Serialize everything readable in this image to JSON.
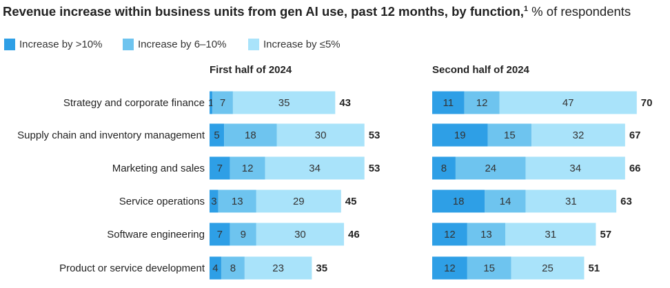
{
  "title": {
    "bold": "Revenue increase within business units from gen AI use, past 12 months, by function,",
    "footnote": "1",
    "normal": " % of respondents"
  },
  "legend": [
    {
      "label": "Increase by >10%",
      "color": "#2e9fe6"
    },
    {
      "label": "Increase by 6–10%",
      "color": "#6ec4ef"
    },
    {
      "label": "Increase by ≤5%",
      "color": "#a9e3fa"
    }
  ],
  "chart_data": {
    "type": "bar",
    "orientation": "horizontal",
    "stacked": true,
    "categories": [
      "Strategy and corporate finance",
      "Supply chain and inventory management",
      "Marketing and sales",
      "Service operations",
      "Software engineering",
      "Product or service development"
    ],
    "panels": [
      {
        "title": "First half of 2024",
        "series": [
          {
            "name": "Increase by >10%",
            "values": [
              1,
              5,
              7,
              3,
              7,
              4
            ]
          },
          {
            "name": "Increase by 6–10%",
            "values": [
              7,
              18,
              12,
              13,
              9,
              8
            ]
          },
          {
            "name": "Increase by ≤5%",
            "values": [
              35,
              30,
              34,
              29,
              30,
              23
            ]
          }
        ],
        "totals": [
          43,
          53,
          53,
          45,
          46,
          35
        ]
      },
      {
        "title": "Second half of 2024",
        "series": [
          {
            "name": "Increase by >10%",
            "values": [
              11,
              19,
              8,
              18,
              12,
              12
            ]
          },
          {
            "name": "Increase by 6–10%",
            "values": [
              12,
              15,
              24,
              14,
              13,
              15
            ]
          },
          {
            "name": "Increase by ≤5%",
            "values": [
              47,
              32,
              34,
              31,
              31,
              25
            ]
          }
        ],
        "totals": [
          70,
          67,
          66,
          63,
          57,
          51
        ]
      }
    ],
    "colors": [
      "#2e9fe6",
      "#6ec4ef",
      "#a9e3fa"
    ]
  }
}
